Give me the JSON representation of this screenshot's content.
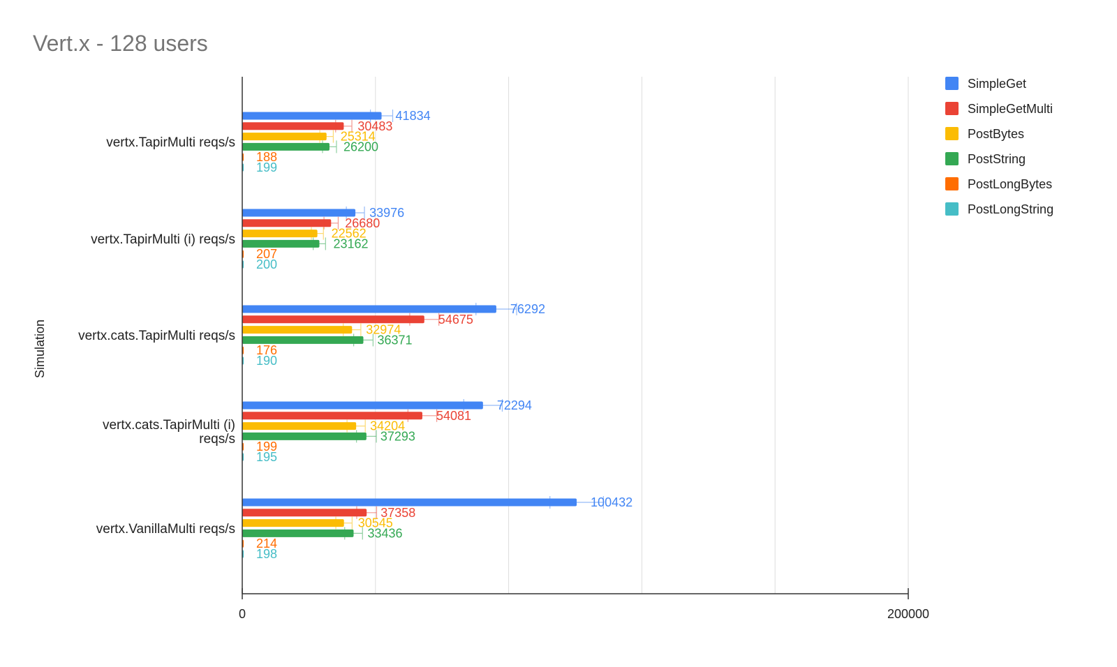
{
  "chart_data": {
    "type": "bar",
    "orientation": "horizontal",
    "title": "Vert.x - 128 users",
    "ylabel": "Simulation",
    "xlabel": "",
    "xlim": [
      0,
      200000
    ],
    "x_tick_labels": [
      "0",
      "200000"
    ],
    "grid": true,
    "error_bars": true,
    "legend_position": "right",
    "categories": [
      "vertx.TapirMulti reqs/s",
      "vertx.TapirMulti (i) reqs/s",
      "vertx.cats.TapirMulti reqs/s",
      "vertx.cats.TapirMulti (i) reqs/s",
      "vertx.VanillaMulti reqs/s"
    ],
    "series": [
      {
        "name": "SimpleGet",
        "color": "#4285f4",
        "values": [
          41834,
          33976,
          76292,
          72294,
          100432
        ]
      },
      {
        "name": "SimpleGetMulti",
        "color": "#ea4335",
        "values": [
          30483,
          26680,
          54675,
          54081,
          37358
        ]
      },
      {
        "name": "PostBytes",
        "color": "#fbbc04",
        "values": [
          25314,
          22562,
          32974,
          34204,
          30545
        ]
      },
      {
        "name": "PostString",
        "color": "#34a853",
        "values": [
          26200,
          23162,
          36371,
          37293,
          33436
        ]
      },
      {
        "name": "PostLongBytes",
        "color": "#ff6d01",
        "values": [
          188,
          207,
          176,
          199,
          214
        ]
      },
      {
        "name": "PostLongString",
        "color": "#46bdc6",
        "values": [
          199,
          200,
          190,
          195,
          198
        ]
      }
    ]
  }
}
